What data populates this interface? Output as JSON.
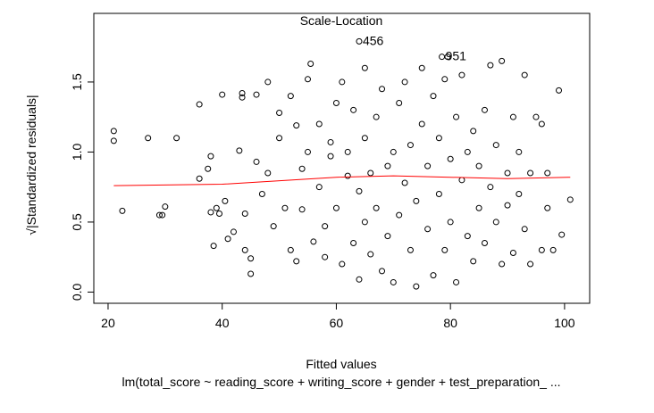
{
  "chart_data": {
    "type": "scatter",
    "title": "Scale-Location",
    "xlabel": "Fitted values",
    "ylabel": "√|Standardized residuals|",
    "subtitle": "lm(total_score ~ reading_score + writing_score + gender + test_preparation_ ...",
    "xlim": [
      17.5,
      104.4
    ],
    "ylim": [
      -0.08,
      1.99
    ],
    "xticks": [
      20,
      40,
      60,
      80,
      100
    ],
    "yticks": [
      {
        "value": 0,
        "label": "0.0"
      },
      {
        "value": 0.5,
        "label": "0.5"
      },
      {
        "value": 1,
        "label": "1.0"
      },
      {
        "value": 1.5,
        "label": "1.5"
      }
    ],
    "color": "#000000",
    "x": [
      21,
      21,
      22.5,
      27,
      29,
      29.5,
      30,
      32,
      36,
      36,
      37.5,
      38,
      38,
      38.5,
      39,
      39.5,
      40,
      40.5,
      41,
      42,
      43,
      43.5,
      43.5,
      44,
      44,
      45,
      45,
      46,
      46,
      47,
      48,
      48,
      49,
      50,
      50,
      51,
      52,
      52,
      53,
      53,
      54,
      54,
      55,
      55,
      55.5,
      56,
      57,
      57,
      58,
      58,
      59,
      59,
      60,
      60,
      61,
      61,
      62,
      62,
      63,
      63,
      64,
      64,
      65,
      65,
      65,
      66,
      66,
      67,
      67,
      68,
      68,
      69,
      69,
      70,
      70,
      71,
      71,
      72,
      72,
      73,
      73,
      74,
      74,
      75,
      75,
      76,
      76,
      77,
      77,
      78,
      78,
      79,
      79,
      80,
      80,
      81,
      81,
      82,
      82,
      83,
      83,
      84,
      84,
      85,
      85,
      86,
      86,
      87,
      87,
      88,
      88,
      89,
      89,
      90,
      90,
      91,
      91,
      92,
      92,
      93,
      93,
      94,
      94,
      95,
      96,
      96,
      97,
      97,
      98,
      99,
      99.5,
      101,
      64,
      78.5,
      79.5
    ],
    "values": [
      1.15,
      1.08,
      0.58,
      1.1,
      0.55,
      0.55,
      0.61,
      1.1,
      1.34,
      0.81,
      0.88,
      0.97,
      0.57,
      0.33,
      0.6,
      0.56,
      1.41,
      0.65,
      0.38,
      0.43,
      1.01,
      1.42,
      1.39,
      0.3,
      0.56,
      0.13,
      0.24,
      1.41,
      0.93,
      0.7,
      1.5,
      0.85,
      0.47,
      1.28,
      1.1,
      0.6,
      0.3,
      1.4,
      0.22,
      1.19,
      0.88,
      0.59,
      1.52,
      1.0,
      1.63,
      0.36,
      0.75,
      1.2,
      0.47,
      0.25,
      0.97,
      1.07,
      1.35,
      0.6,
      0.2,
      1.5,
      0.83,
      1.0,
      0.35,
      1.3,
      0.09,
      0.72,
      1.6,
      0.5,
      1.1,
      0.85,
      0.27,
      1.25,
      0.6,
      0.15,
      1.45,
      0.9,
      0.4,
      1.0,
      0.07,
      1.35,
      0.55,
      0.78,
      1.5,
      0.3,
      1.05,
      0.04,
      0.65,
      1.2,
      1.6,
      0.45,
      0.9,
      0.12,
      1.4,
      0.7,
      1.1,
      0.3,
      1.52,
      0.95,
      0.5,
      1.25,
      0.07,
      0.8,
      1.55,
      0.4,
      1.0,
      0.22,
      1.15,
      0.6,
      0.9,
      1.3,
      0.35,
      0.75,
      1.62,
      0.5,
      1.05,
      0.2,
      1.65,
      0.85,
      0.62,
      1.25,
      0.28,
      0.7,
      1.0,
      0.45,
      1.55,
      0.2,
      0.85,
      1.25,
      0.3,
      1.2,
      0.6,
      0.85,
      0.3,
      1.44,
      0.41,
      0.66,
      1.79,
      1.68,
      1.68
    ],
    "point_labels": [
      {
        "text": "456",
        "x": 64,
        "y": 1.79
      },
      {
        "text": "951",
        "x": 78.5,
        "y": 1.68
      }
    ],
    "smooth": {
      "color": "#ff0000",
      "x": [
        21,
        40,
        60,
        70,
        80,
        90,
        101
      ],
      "values": [
        0.76,
        0.77,
        0.82,
        0.83,
        0.82,
        0.81,
        0.82
      ]
    }
  }
}
